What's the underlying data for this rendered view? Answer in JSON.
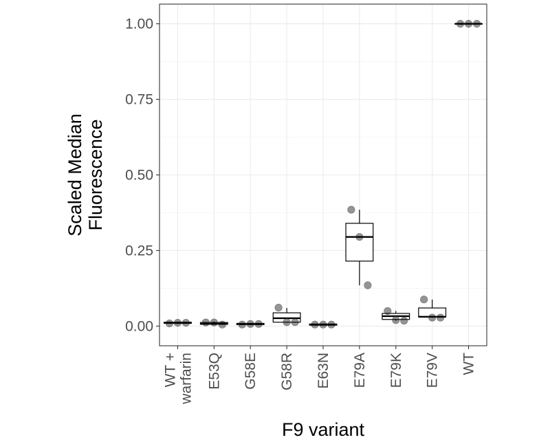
{
  "chart_data": {
    "type": "boxplot",
    "xlabel": "F9 variant",
    "ylabel": "Scaled Median Fluorescence",
    "ylim": [
      -0.065,
      1.065
    ],
    "y_ticks": [
      "0.00",
      "0.25",
      "0.50",
      "0.75",
      "1.00"
    ],
    "y_tick_values": [
      0,
      0.25,
      0.5,
      0.75,
      1.0
    ],
    "grid": true,
    "categories": [
      {
        "label": "WT +",
        "label2": "warfarin"
      },
      {
        "label": "E53Q"
      },
      {
        "label": "G58E"
      },
      {
        "label": "G58R"
      },
      {
        "label": "E63N"
      },
      {
        "label": "E79A"
      },
      {
        "label": "E79K"
      },
      {
        "label": "E79V"
      },
      {
        "label": "WT"
      }
    ],
    "boxes": [
      {
        "min": 0.007,
        "q1": 0.009,
        "median": 0.011,
        "q3": 0.013,
        "max": 0.015,
        "points": [
          0.009,
          0.011,
          0.011
        ]
      },
      {
        "min": 0.005,
        "q1": 0.006,
        "median": 0.008,
        "q3": 0.012,
        "max": 0.015,
        "points": [
          0.012,
          0.012,
          0.005
        ]
      },
      {
        "min": 0.005,
        "q1": 0.005,
        "median": 0.007,
        "q3": 0.009,
        "max": 0.009,
        "points": [
          0.005,
          0.007,
          0.007
        ]
      },
      {
        "min": 0.012,
        "q1": 0.013,
        "median": 0.026,
        "q3": 0.044,
        "max": 0.06,
        "points": [
          0.061,
          0.013,
          0.013
        ]
      },
      {
        "min": 0.003,
        "q1": 0.003,
        "median": 0.005,
        "q3": 0.007,
        "max": 0.008,
        "points": [
          0.005,
          0.005,
          0.005
        ]
      },
      {
        "min": 0.135,
        "q1": 0.215,
        "median": 0.295,
        "q3": 0.34,
        "max": 0.385,
        "points": [
          0.385,
          0.295,
          0.135
        ]
      },
      {
        "min": 0.018,
        "q1": 0.022,
        "median": 0.033,
        "q3": 0.042,
        "max": 0.05,
        "points": [
          0.05,
          0.02,
          0.018
        ]
      },
      {
        "min": 0.028,
        "q1": 0.03,
        "median": 0.031,
        "q3": 0.06,
        "max": 0.088,
        "points": [
          0.088,
          0.028,
          0.028
        ]
      },
      {
        "min": 1.0,
        "q1": 1.0,
        "median": 1.0,
        "q3": 1.0,
        "max": 1.0,
        "points": [
          1.0,
          1.0,
          1.0
        ]
      }
    ]
  }
}
